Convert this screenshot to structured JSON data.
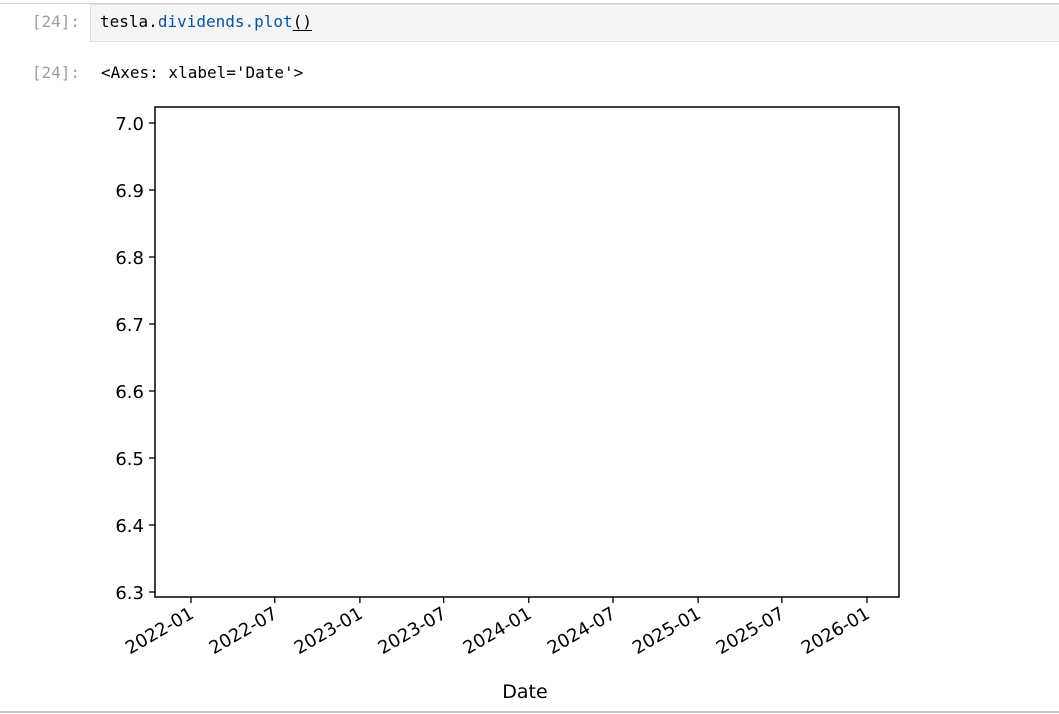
{
  "input_cell": {
    "prompt": "[24]:",
    "code": {
      "object": "tesla",
      "dot1": ".",
      "attribute": "dividends",
      "dot2": ".",
      "method": "plot",
      "call": "()"
    }
  },
  "output_cell": {
    "prompt": "[24]:",
    "repr": "<Axes: xlabel='Date'>"
  },
  "chart_data": {
    "type": "line",
    "title": "",
    "xlabel": "Date",
    "ylabel": "",
    "series": [],
    "xlim": [
      "2021-10-01",
      "2026-04-01"
    ],
    "ylim": [
      6.3,
      7.0
    ],
    "x_ticks": [
      "2022-01",
      "2022-07",
      "2023-01",
      "2023-07",
      "2024-01",
      "2024-07",
      "2025-01",
      "2025-07",
      "2026-01"
    ],
    "y_ticks": [
      "6.3",
      "6.4",
      "6.5",
      "6.6",
      "6.7",
      "6.8",
      "6.9",
      "7.0"
    ],
    "grid": false,
    "legend": "none"
  }
}
